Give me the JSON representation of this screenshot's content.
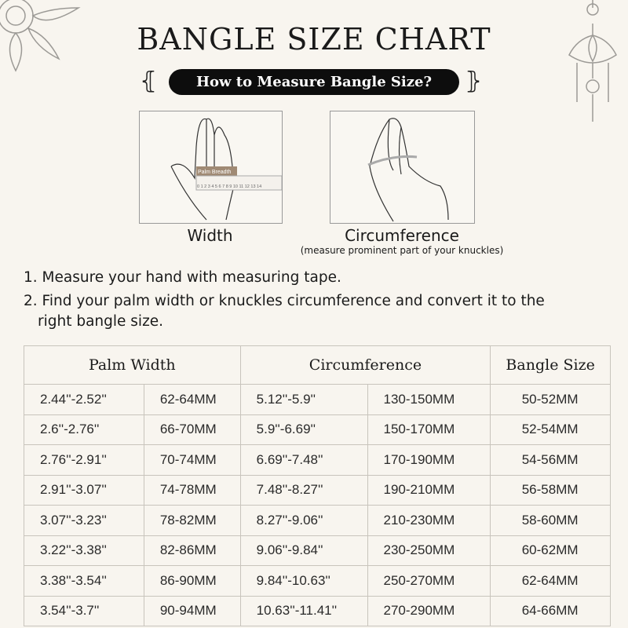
{
  "title": "BANGLE SIZE CHART",
  "subtitle": "How to Measure Bangle Size?",
  "illustrations": {
    "width": {
      "label": "Width",
      "ruler_label": "Palm Breadth",
      "ruler_ticks": "0 1 2 3 4 5 6 7 8 9 10 11 12 13 14"
    },
    "circumference": {
      "label": "Circumference",
      "note": "(measure prominent part of your knuckles)"
    }
  },
  "steps": [
    "1. Measure your hand with measuring tape.",
    "2. Find your palm width or knuckles circumference and convert it to the",
    "right bangle size."
  ],
  "table": {
    "headers": [
      "Palm Width",
      "Circumference",
      "Bangle Size"
    ],
    "rows": [
      [
        "2.44''-2.52''",
        "62-64MM",
        "5.12''-5.9''",
        "130-150MM",
        "50-52MM"
      ],
      [
        "2.6''-2.76''",
        "66-70MM",
        "5.9''-6.69''",
        "150-170MM",
        "52-54MM"
      ],
      [
        "2.76''-2.91''",
        "70-74MM",
        "6.69''-7.48''",
        "170-190MM",
        "54-56MM"
      ],
      [
        "2.91''-3.07''",
        "74-78MM",
        "7.48''-8.27''",
        "190-210MM",
        "56-58MM"
      ],
      [
        "3.07''-3.23''",
        "78-82MM",
        "8.27''-9.06''",
        "210-230MM",
        "58-60MM"
      ],
      [
        "3.22''-3.38''",
        "82-86MM",
        "9.06''-9.84''",
        "230-250MM",
        "60-62MM"
      ],
      [
        "3.38''-3.54''",
        "86-90MM",
        "9.84''-10.63''",
        "250-270MM",
        "62-64MM"
      ],
      [
        "3.54''-3.7''",
        "90-94MM",
        "10.63''-11.41''",
        "270-290MM",
        "64-66MM"
      ]
    ]
  },
  "colors": {
    "background": "#f8f5ef",
    "pill": "#0d0d0d",
    "ruler_label": "#a08a74",
    "grid": "#c8c4bc"
  },
  "icons": [
    "mandala-corner-icon",
    "lotus-hanging-icon",
    "scroll-ornament-left-icon",
    "scroll-ornament-right-icon"
  ]
}
